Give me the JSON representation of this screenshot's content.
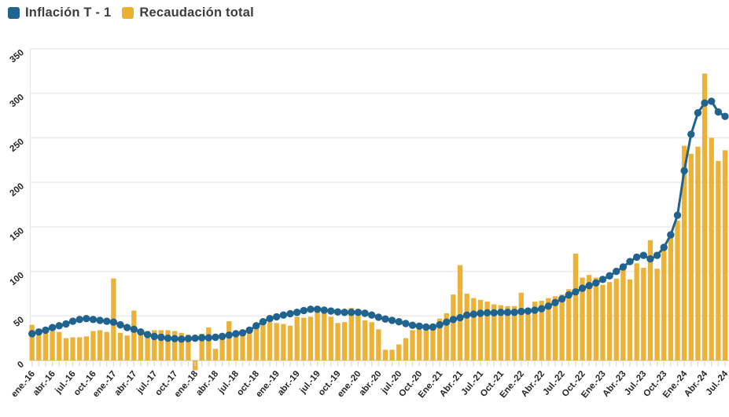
{
  "legend": {
    "items": [
      {
        "label": "Inflación T - 1",
        "color": "#20638F",
        "series": "line"
      },
      {
        "label": "Recaudación total",
        "color": "#EBB02E",
        "series": "bar"
      }
    ]
  },
  "chart_data": {
    "type": "bar+line",
    "title": "",
    "xlabel": "",
    "ylabel": "",
    "ylim": [
      -15,
      350
    ],
    "y_ticks": [
      0,
      50,
      100,
      150,
      200,
      250,
      300,
      350
    ],
    "grid": "horizontal",
    "legend_position": "top-left",
    "x_tick_labels": [
      "ene.-16",
      "abr.-16",
      "jul.-16",
      "oct.-16",
      "ene.-17",
      "abr.-17",
      "jul.-17",
      "oct.-17",
      "ene.-18",
      "abr.-18",
      "jul.-18",
      "oct.-18",
      "ene.-19",
      "abr.-19",
      "jul.-19",
      "oct.-19",
      "ene.-20",
      "abr.-20",
      "jul.-20",
      "Oct.-20",
      "Ene.-21",
      "Abr.-21",
      "Jul.-21",
      "Oct.-21",
      "Ene.-22",
      "Abr.-22",
      "Jul.-22",
      "Oct.-22",
      "Ene.-23",
      "Abr.-23",
      "Jul.-23",
      "Oct.-23",
      "Ene.-24",
      "Abr.-24",
      "Jul.-24"
    ],
    "x_tick_every": 3,
    "series": [
      {
        "name": "Recaudación total",
        "type": "bar",
        "color": "#ECB238",
        "values": [
          40,
          31,
          33,
          33,
          32,
          25,
          26,
          26,
          27,
          33,
          34,
          32,
          92,
          31,
          28,
          56,
          34,
          33,
          34,
          34,
          34,
          33,
          31,
          29,
          -11,
          30,
          37,
          13,
          29,
          44,
          32,
          34,
          36,
          39,
          41,
          43,
          42,
          41,
          39,
          49,
          48,
          49,
          56,
          54,
          49,
          42,
          43,
          59,
          50,
          45,
          43,
          35,
          12,
          12,
          18,
          25,
          34,
          37,
          36,
          37,
          47,
          53,
          74,
          107,
          75,
          70,
          68,
          66,
          63,
          62,
          61,
          61,
          76,
          52,
          66,
          67,
          70,
          72,
          74,
          80,
          120,
          93,
          96,
          93,
          85,
          88,
          92,
          106,
          91,
          109,
          104,
          135,
          103,
          128,
          139,
          157,
          241,
          232,
          240,
          322,
          250,
          224,
          236
        ]
      },
      {
        "name": "Inflación T - 1",
        "type": "line",
        "color": "#20638F",
        "values": [
          30,
          32,
          34,
          37,
          39,
          41,
          44,
          46,
          47,
          46,
          45,
          44,
          43,
          40,
          37,
          35,
          32,
          29,
          27,
          26,
          25,
          24.5,
          24,
          24.5,
          25,
          25.5,
          25.5,
          26,
          27,
          28.5,
          30,
          31,
          34,
          39,
          43.5,
          47,
          49,
          51,
          52.5,
          54,
          56,
          57.5,
          57.5,
          56.5,
          55.5,
          54.5,
          54,
          54,
          54,
          53,
          51,
          48.5,
          46.5,
          45,
          43.5,
          41.5,
          39.5,
          38.5,
          37.5,
          37.5,
          40,
          43,
          46,
          48,
          51,
          52,
          53,
          53.5,
          53.5,
          54,
          54,
          54,
          55,
          55.5,
          56.5,
          58,
          61,
          65,
          69,
          73.5,
          77,
          81,
          84,
          87,
          91,
          95,
          100,
          105,
          111,
          116,
          118,
          114,
          118,
          127,
          141,
          163,
          213,
          254,
          278,
          289,
          291,
          279,
          274
        ]
      }
    ]
  }
}
